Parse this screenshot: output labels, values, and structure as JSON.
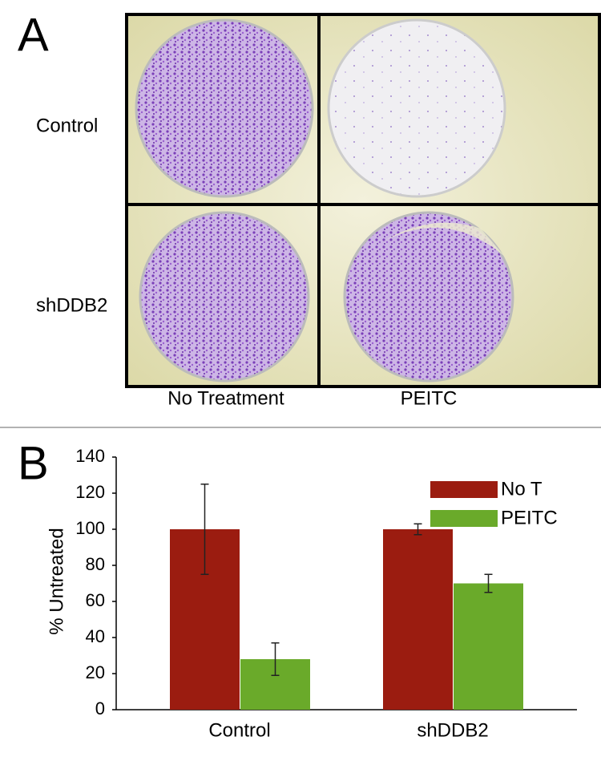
{
  "panel_a": {
    "label": "A",
    "rows": [
      "Control",
      "shDDB2"
    ],
    "columns": [
      "No Treatment",
      "PEITC"
    ]
  },
  "chart_data": {
    "type": "bar",
    "label": "B",
    "ylabel": "% Untreated",
    "categories": [
      "Control",
      "shDDB2"
    ],
    "series": [
      {
        "name": "No T",
        "color": "#9b1c10",
        "values": [
          100,
          100
        ],
        "errors": [
          25,
          3
        ]
      },
      {
        "name": "PEITC",
        "color": "#6aaa2a",
        "values": [
          28,
          70
        ],
        "errors": [
          9,
          5
        ]
      }
    ],
    "ylim": [
      0,
      140
    ],
    "yticks": [
      0,
      20,
      40,
      60,
      80,
      100,
      120,
      140
    ],
    "grid": false,
    "legend": "top-right"
  }
}
